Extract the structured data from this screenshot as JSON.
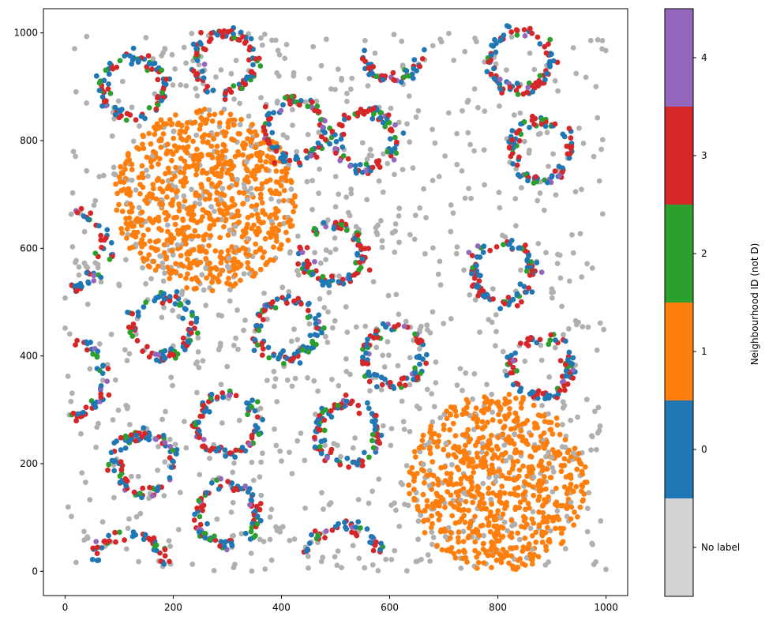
{
  "chart_data": {
    "type": "scatter",
    "title": "",
    "xlabel": "",
    "ylabel": "",
    "xlim": [
      -40,
      1040
    ],
    "ylim": [
      -45,
      1045
    ],
    "xticks": [
      "0",
      "200",
      "400",
      "600",
      "800",
      "1000"
    ],
    "yticks": [
      "0",
      "200",
      "400",
      "600",
      "800",
      "1000"
    ],
    "grid": false,
    "colorbar": {
      "label": "Neighbourhood ID (not D)",
      "entries": [
        {
          "label": "No label",
          "color": "#d3d3d3"
        },
        {
          "label": "0",
          "color": "#1f77b4"
        },
        {
          "label": "1",
          "color": "#ff7f0e"
        },
        {
          "label": "2",
          "color": "#2ca02c"
        },
        {
          "label": "3",
          "color": "#d62728"
        },
        {
          "label": "4",
          "color": "#9467bd"
        }
      ]
    },
    "point_color_unlabeled": "#b0b0b0",
    "background_points": {
      "count": 900,
      "x_range": [
        0,
        1000
      ],
      "y_range": [
        0,
        1000
      ]
    },
    "clusters": [
      {
        "label": "1",
        "cx": 260,
        "cy": 690,
        "radius": 170,
        "count": 820
      },
      {
        "label": "1",
        "cx": 800,
        "cy": 165,
        "radius": 165,
        "count": 760
      }
    ],
    "rings": [
      {
        "cx": 125,
        "cy": 900,
        "r": 55
      },
      {
        "cx": 295,
        "cy": 945,
        "r": 55
      },
      {
        "cx": 425,
        "cy": 820,
        "r": 55
      },
      {
        "cx": 555,
        "cy": 800,
        "r": 55
      },
      {
        "cx": 840,
        "cy": 950,
        "r": 55
      },
      {
        "cx": 880,
        "cy": 780,
        "r": 55
      },
      {
        "cx": 495,
        "cy": 590,
        "r": 55
      },
      {
        "cx": 810,
        "cy": 555,
        "r": 55
      },
      {
        "cx": 180,
        "cy": 455,
        "r": 55
      },
      {
        "cx": 410,
        "cy": 450,
        "r": 55
      },
      {
        "cx": 610,
        "cy": 400,
        "r": 55
      },
      {
        "cx": 880,
        "cy": 380,
        "r": 55
      },
      {
        "cx": 300,
        "cy": 275,
        "r": 55
      },
      {
        "cx": 520,
        "cy": 255,
        "r": 55
      },
      {
        "cx": 145,
        "cy": 200,
        "r": 55
      },
      {
        "cx": 300,
        "cy": 105,
        "r": 55
      }
    ],
    "arcs": [
      {
        "cx": 120,
        "cy": 0,
        "r": 70,
        "start_deg": 10,
        "end_deg": 170
      },
      {
        "cx": 515,
        "cy": 20,
        "r": 65,
        "start_deg": 10,
        "end_deg": 170
      },
      {
        "cx": 610,
        "cy": 980,
        "r": 65,
        "start_deg": 190,
        "end_deg": 350
      },
      {
        "cx": 0,
        "cy": 600,
        "r": 75,
        "start_deg": -80,
        "end_deg": 80
      },
      {
        "cx": 0,
        "cy": 360,
        "r": 75,
        "start_deg": -80,
        "end_deg": 80
      }
    ]
  }
}
